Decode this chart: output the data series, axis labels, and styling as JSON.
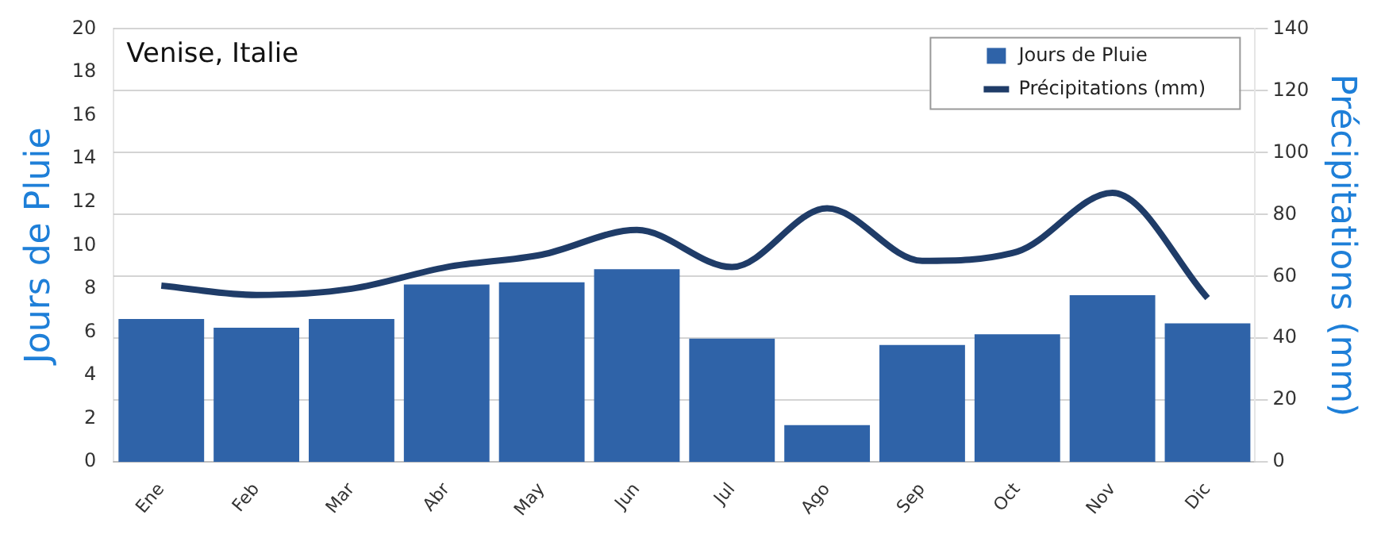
{
  "chart_data": {
    "type": "bar",
    "title": "Venise, Italie",
    "ylabel": "Jours de Pluie",
    "y2label": "Précipitations (mm)",
    "categories": [
      "Ene",
      "Feb",
      "Mar",
      "Abr",
      "May",
      "Jun",
      "Jul",
      "Ago",
      "Sep",
      "Oct",
      "Nov",
      "Dic"
    ],
    "series": [
      {
        "name": "Jours de Pluie",
        "color": "#2f63a8",
        "values": [
          6.6,
          6.2,
          6.6,
          8.2,
          8.3,
          8.9,
          5.7,
          1.7,
          5.4,
          5.9,
          7.7,
          6.4
        ]
      },
      {
        "name": "Précipitations (mm)",
        "type": "line",
        "axis": "y2",
        "color": "#1f3c68",
        "values": [
          57,
          54,
          56,
          63,
          67,
          75,
          63,
          82,
          65,
          68,
          87,
          53
        ]
      }
    ],
    "ylim": [
      0,
      20
    ],
    "yticks": [
      0,
      2,
      4,
      6,
      8,
      10,
      12,
      14,
      16,
      18,
      20
    ],
    "y2lim": [
      0,
      140
    ],
    "y2ticks": [
      0,
      20,
      40,
      60,
      80,
      100,
      120,
      140
    ],
    "grid": "y",
    "legend": "top right",
    "marker": "none"
  }
}
